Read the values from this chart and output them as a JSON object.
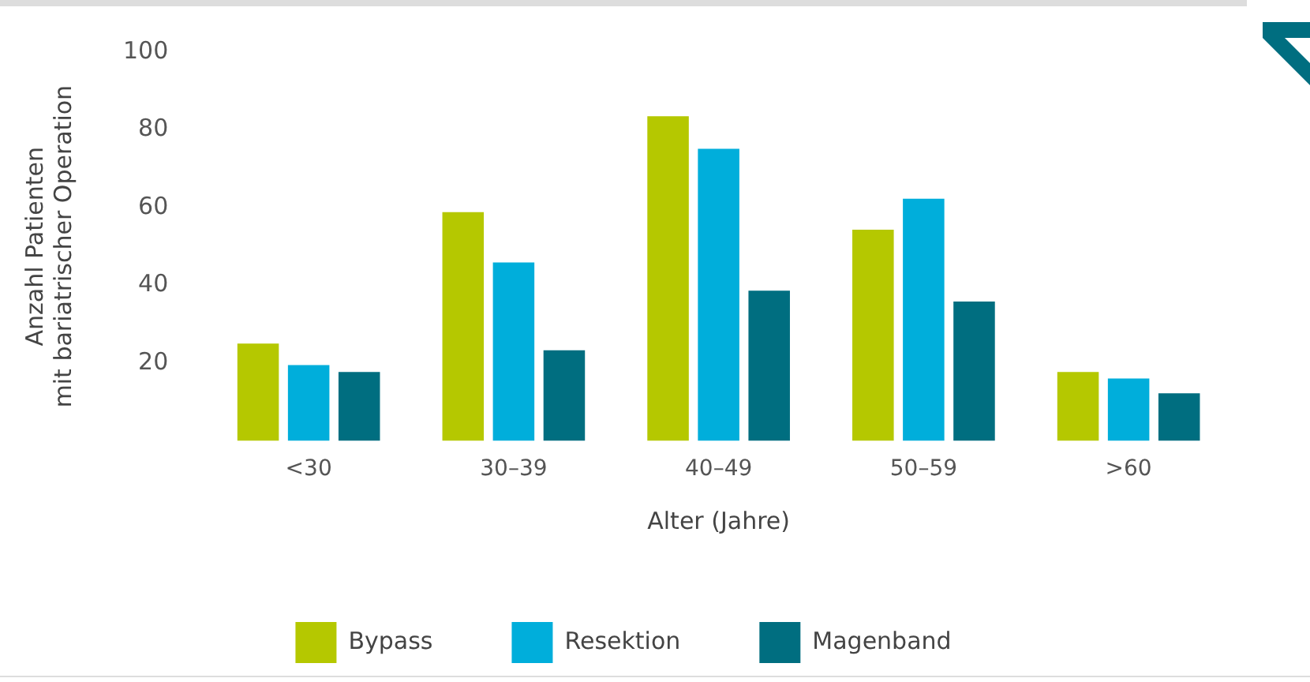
{
  "chart_data": {
    "type": "bar",
    "xlabel": "Alter (Jahre)",
    "ylabel": "Anzahl Patienten\nmit bariatrischer Operation",
    "categories": [
      "<30",
      "30–39",
      "40–49",
      "50–59",
      ">60"
    ],
    "series": [
      {
        "name": "Bypass",
        "color": "#b5c800",
        "values": [
          25,
          58.8,
          83.5,
          54.3,
          17.7
        ]
      },
      {
        "name": "Resektion",
        "color": "#00aedb",
        "values": [
          19.5,
          45.9,
          75.1,
          62.3,
          16
        ]
      },
      {
        "name": "Magenband",
        "color": "#006e80",
        "values": [
          17.7,
          23.3,
          38.6,
          35.8,
          12.2
        ]
      }
    ],
    "ylim": [
      0,
      100
    ],
    "yticks": [
      20,
      40,
      60,
      80,
      100
    ],
    "grid": false,
    "legend": "bottom"
  }
}
